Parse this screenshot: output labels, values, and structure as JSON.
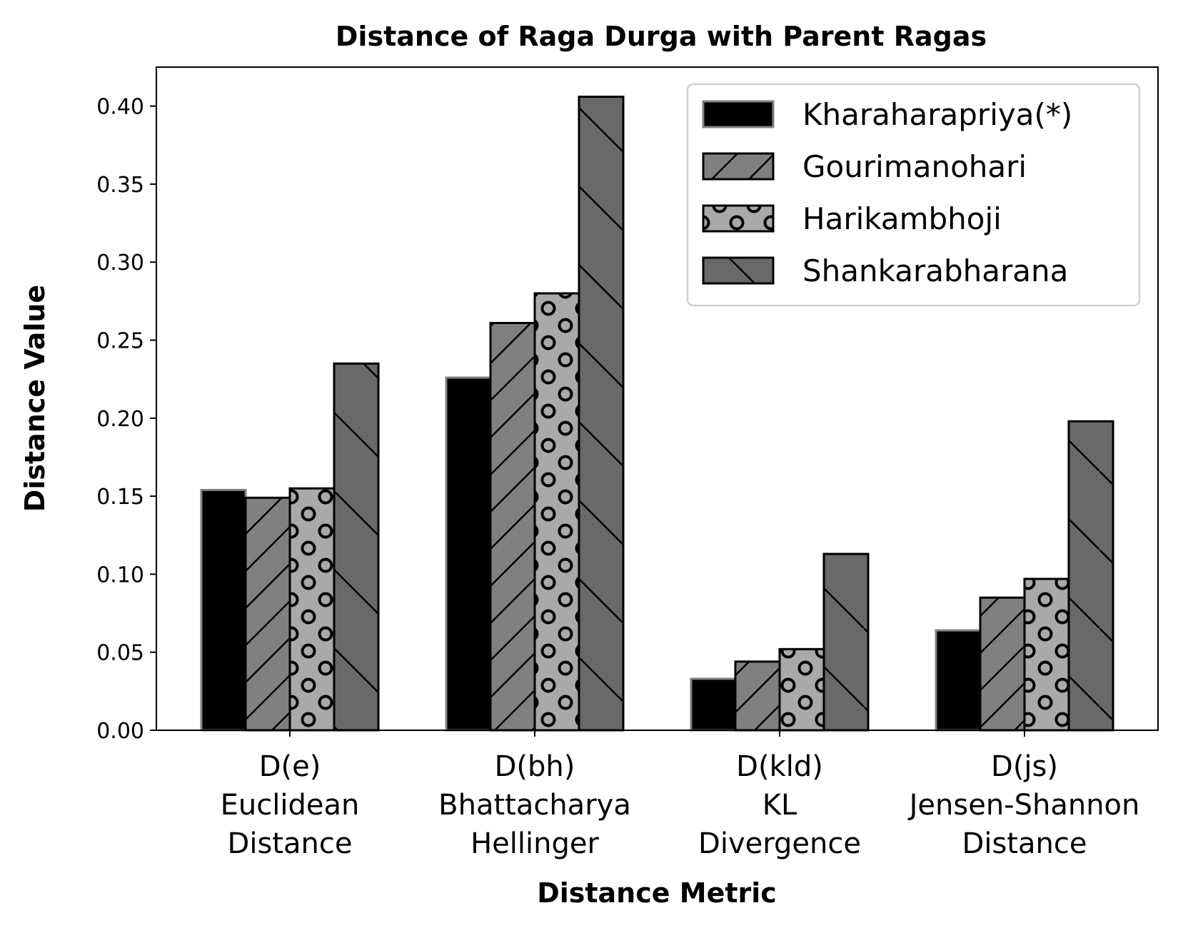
{
  "chart_data": {
    "type": "bar",
    "title": "Distance of Raga Durga with Parent Ragas",
    "xlabel": "Distance Metric",
    "ylabel": "Distance Value",
    "ylim": [
      0,
      0.425
    ],
    "yticks": [
      "0.00",
      "0.05",
      "0.10",
      "0.15",
      "0.20",
      "0.25",
      "0.30",
      "0.35",
      "0.40"
    ],
    "categories": [
      [
        "D(e)",
        "Euclidean",
        "Distance"
      ],
      [
        "D(bh)",
        "Bhattacharya",
        "Hellinger"
      ],
      [
        "D(kld)",
        "KL",
        "Divergence"
      ],
      [
        "D(js)",
        "Jensen-Shannon",
        "Distance"
      ]
    ],
    "series": [
      {
        "name": "Kharaharapriya(*)",
        "values": [
          0.154,
          0.226,
          0.033,
          0.064
        ],
        "color": "#000000",
        "edge": "#808080",
        "pattern": "solid"
      },
      {
        "name": "Gourimanohari",
        "values": [
          0.149,
          0.261,
          0.044,
          0.085
        ],
        "color": "#808080",
        "edge": "#000000",
        "pattern": "forward-diagonal"
      },
      {
        "name": "Harikambhoji",
        "values": [
          0.155,
          0.28,
          0.052,
          0.097
        ],
        "color": "#a9a9a9",
        "edge": "#000000",
        "pattern": "circles"
      },
      {
        "name": "Shankarabharana",
        "values": [
          0.235,
          0.406,
          0.113,
          0.198
        ],
        "color": "#696969",
        "edge": "#000000",
        "pattern": "back-diagonal"
      }
    ],
    "grid": false,
    "legend_position": "top-right"
  }
}
